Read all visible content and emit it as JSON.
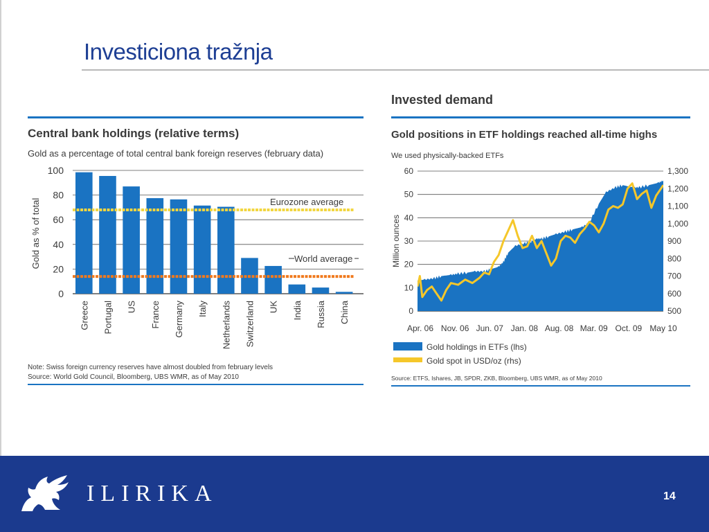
{
  "slide": {
    "title": "Investiciona tražnja",
    "page_number": "14",
    "brand": "ILIRIKA"
  },
  "chart_data": [
    {
      "type": "bar",
      "title": "Central bank holdings (relative terms)",
      "subtitle": "Gold as a percentage of total central bank foreign reserves (february data)",
      "ylabel": "Gold as % of total",
      "ylim": [
        0,
        100
      ],
      "yticks": [
        0,
        20,
        40,
        60,
        80,
        100
      ],
      "categories": [
        "Greece",
        "Portugal",
        "US",
        "France",
        "Germany",
        "Italy",
        "Netherlands",
        "Switzerland",
        "UK",
        "India",
        "Russia",
        "China"
      ],
      "values": [
        98.5,
        95.5,
        87,
        77.5,
        76.5,
        71.5,
        70.5,
        29,
        22.5,
        7.5,
        5,
        1.5
      ],
      "color": "#1a73c2",
      "reference_lines": [
        {
          "label": "Eurozone average",
          "value": 68,
          "color": "#f2d640"
        },
        {
          "label": "World average",
          "value": 14,
          "color": "#f07a1e"
        }
      ],
      "note": "Note: Swiss foreign currency reserves have almost doubled from february levels",
      "source": "Source: World Gold Council, Bloomberg, UBS WMR, as of May 2010",
      "grid": true
    },
    {
      "type": "area",
      "section_title": "Invested demand",
      "title": "Gold positions in ETF holdings reached all-time highs",
      "subtitle": "We used physically-backed ETFs",
      "ylabel": "Million ounces",
      "ylim": [
        0,
        60
      ],
      "yticks": [
        0,
        10,
        20,
        30,
        40,
        50,
        60
      ],
      "y2lim": [
        500,
        1300
      ],
      "y2ticks": [
        "500",
        "600",
        "700",
        "800",
        "900",
        "1,000",
        "1,100",
        "1,200",
        "1,300"
      ],
      "xticks": [
        "Apr. 06",
        "Nov. 06",
        "Jun. 07",
        "Jan. 08",
        "Aug. 08",
        "Mar. 09",
        "Oct. 09",
        "May 10"
      ],
      "grid": true,
      "series": [
        {
          "name": "Gold holdings in ETFs (lhs)",
          "axis": "left",
          "color": "#1a73c2",
          "x": [
            0,
            3,
            7,
            10,
            14,
            17,
            21,
            24,
            28,
            31,
            34,
            36,
            38,
            41,
            45,
            48,
            50,
            52,
            55,
            58,
            62,
            65,
            69,
            72,
            76,
            79,
            83,
            86,
            90,
            93,
            97,
            101,
            103
          ],
          "values": [
            13,
            13.5,
            14,
            15,
            15.5,
            16,
            16.5,
            17,
            17,
            18,
            19,
            21,
            25,
            28,
            29,
            30,
            31,
            31,
            32,
            33,
            34,
            35,
            36,
            38,
            46,
            51,
            53,
            54,
            53,
            53,
            54,
            55,
            56
          ]
        },
        {
          "name": "Gold spot in USD/oz (rhs)",
          "axis": "right",
          "color": "#f5c72a",
          "x": [
            0,
            1,
            2,
            4,
            6,
            8,
            10,
            12,
            14,
            17,
            20,
            23,
            26,
            28,
            30,
            32,
            34,
            36,
            38,
            40,
            42,
            44,
            46,
            48,
            50,
            52,
            54,
            56,
            58,
            60,
            62,
            64,
            66,
            68,
            70,
            72,
            74,
            76,
            78,
            80,
            82,
            84,
            86,
            88,
            90,
            92,
            94,
            96,
            98,
            100,
            102,
            103
          ],
          "values": [
            640,
            700,
            580,
            620,
            640,
            600,
            560,
            620,
            660,
            650,
            680,
            660,
            690,
            720,
            710,
            780,
            820,
            900,
            960,
            1020,
            930,
            860,
            870,
            930,
            860,
            900,
            830,
            760,
            800,
            900,
            930,
            920,
            890,
            940,
            970,
            1010,
            990,
            950,
            1000,
            1080,
            1100,
            1090,
            1110,
            1200,
            1230,
            1140,
            1170,
            1190,
            1090,
            1160,
            1200,
            1220
          ]
        }
      ],
      "source": "Source: ETFS, Ishares, JB, SPDR, ZKB, Bloomberg, UBS WMR, as of May 2010"
    }
  ]
}
